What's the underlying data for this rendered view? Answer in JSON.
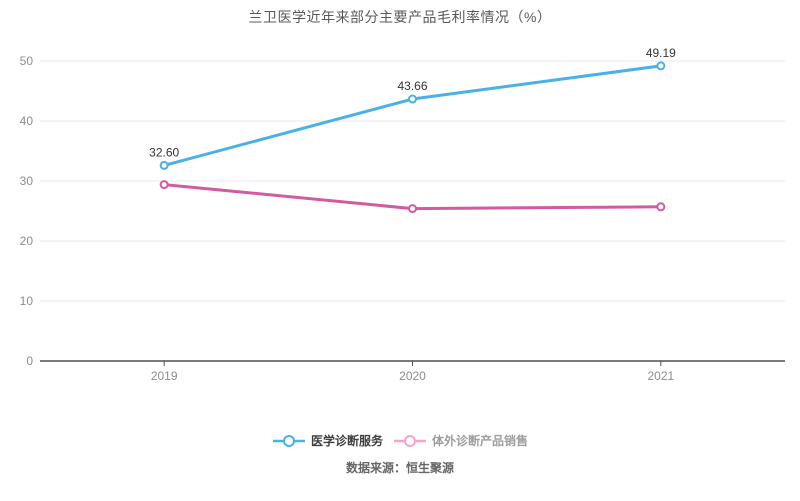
{
  "chart_data": {
    "type": "line",
    "title": "兰卫医学近年来部分主要产品毛利率情况（%）",
    "categories": [
      "2019",
      "2020",
      "2021"
    ],
    "series": [
      {
        "name": "医学诊断服务",
        "values": [
          32.6,
          43.66,
          49.19
        ],
        "labels": [
          "32.60",
          "43.66",
          "49.19"
        ],
        "show_labels": true,
        "color": "#49b1e7",
        "legend_marker_color": "#49b1e7",
        "legend_text_color": "#3f3f3f"
      },
      {
        "name": "体外诊断产品销售",
        "values": [
          29.4,
          25.4,
          25.7
        ],
        "labels": [
          "29.4",
          "25.4",
          "25.7"
        ],
        "show_labels": false,
        "color": "#d45a9f",
        "legend_marker_color": "#f2a6cd",
        "legend_text_color": "#9e9e9e"
      }
    ],
    "ylim": [
      0,
      50
    ],
    "yticks": [
      0,
      10,
      20,
      30,
      40,
      50
    ],
    "grid": true,
    "legend_position": "bottom",
    "source": "数据来源：恒生聚源",
    "colors": {
      "gridline": "#e4e9f2",
      "axis": "#4d4d4d",
      "tick_label": "#8c8c8c",
      "data_label": "#333333",
      "title": "#595959"
    }
  }
}
